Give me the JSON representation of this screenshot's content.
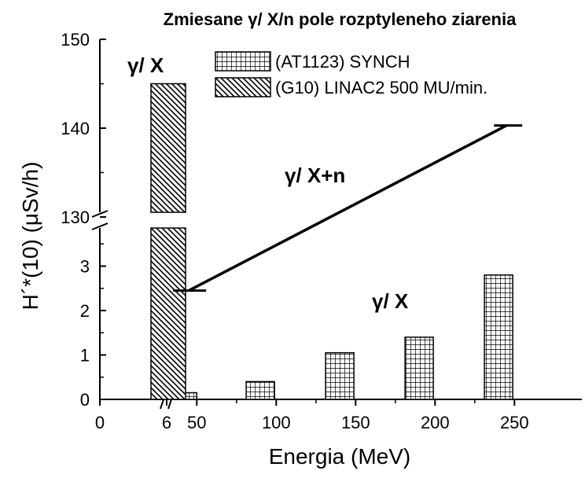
{
  "chart_data": {
    "type": "bar",
    "title": "Zmiesane γ/ X/n pole rozptyleneho ziarenia",
    "xlabel": "Energia (MeV)",
    "ylabel": "H´*(10) (μSv/h)",
    "x_ticks": [
      "0",
      "6",
      "50",
      "100",
      "150",
      "200",
      "250"
    ],
    "y_ticks_lower": [
      "0",
      "1",
      "2",
      "3"
    ],
    "y_ticks_upper": [
      "130",
      "140",
      "150"
    ],
    "x_break": "yes",
    "y_break": "yes",
    "legend": {
      "placement": "top-right",
      "entries": [
        "(AT1123) SYNCH",
        "(G10) LINAC2 500 MU/min."
      ]
    },
    "series": [
      {
        "name": "(AT1123) SYNCH",
        "pattern": "grid",
        "x": [
          45,
          90,
          140,
          190,
          240
        ],
        "values": [
          0.15,
          0.4,
          1.05,
          1.4,
          2.8
        ]
      },
      {
        "name": "(G10) LINAC2 500 MU/min.",
        "pattern": "diagonal-hatch",
        "x": [
          6
        ],
        "values": [
          145
        ]
      }
    ],
    "line": {
      "name": "γ/ X+n",
      "points": [
        [
          45,
          2.45
        ],
        [
          245,
          140.3
        ]
      ]
    },
    "annotations": [
      "γ/ X",
      "γ/ X+n",
      "γ/ X"
    ]
  }
}
